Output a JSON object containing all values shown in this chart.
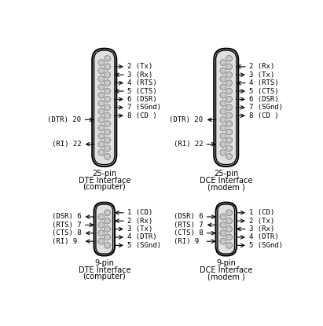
{
  "bg_color": "#ffffff",
  "conn_outer_fill": "#f2f2f2",
  "conn_inner_fill": "#e8e8e8",
  "conn_edge": "#000000",
  "pin_fill": "#c8c8c8",
  "pin_edge": "#888888",
  "arrow_color": "#000000",
  "text_color": "#000000",
  "font_size": 6.5,
  "label_font_size": 7.0,
  "db25_dte_label": [
    "25-pin",
    "DTE Interface",
    "(computer)"
  ],
  "db25_dce_label": [
    "25-pin",
    "DCE Interface",
    "(modem )"
  ],
  "db9_dte_label": [
    "9-pin",
    "DTE Interface",
    "(computer)"
  ],
  "db9_dce_label": [
    "9-pin",
    "DCE Interface",
    "(modem )"
  ]
}
